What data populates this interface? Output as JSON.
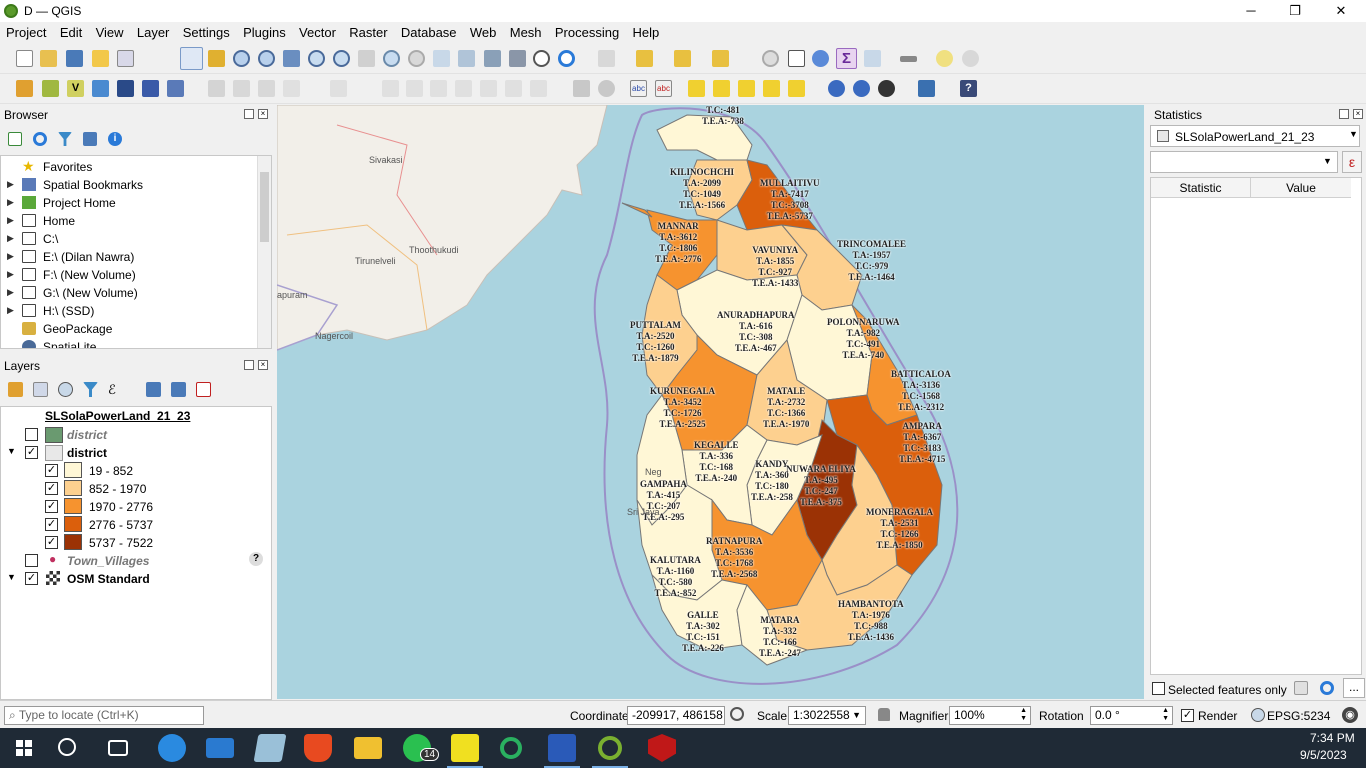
{
  "window": {
    "title": "D — QGIS",
    "minimize": "─",
    "maximize": "❐",
    "close": "✕"
  },
  "menu": [
    "Project",
    "Edit",
    "View",
    "Layer",
    "Settings",
    "Plugins",
    "Vector",
    "Raster",
    "Database",
    "Web",
    "Mesh",
    "Processing",
    "Help"
  ],
  "browser": {
    "title": "Browser",
    "items": [
      {
        "label": "Favorites",
        "icon": "star-icon",
        "expand": ""
      },
      {
        "label": "Spatial Bookmarks",
        "icon": "bookmark-icon",
        "expand": "▶"
      },
      {
        "label": "Project Home",
        "icon": "project-home-icon",
        "expand": "▶"
      },
      {
        "label": "Home",
        "icon": "folder-icon",
        "expand": "▶"
      },
      {
        "label": "C:\\",
        "icon": "folder-icon",
        "expand": "▶"
      },
      {
        "label": "E:\\ (Dilan Nawra)",
        "icon": "folder-icon",
        "expand": "▶"
      },
      {
        "label": "F:\\ (New Volume)",
        "icon": "folder-icon",
        "expand": "▶"
      },
      {
        "label": "G:\\ (New Volume)",
        "icon": "folder-icon",
        "expand": "▶"
      },
      {
        "label": "H:\\ (SSD)",
        "icon": "folder-icon",
        "expand": "▶"
      },
      {
        "label": "GeoPackage",
        "icon": "geopackage-icon",
        "expand": ""
      },
      {
        "label": "SpatiaLite",
        "icon": "spatialite-icon",
        "expand": ""
      }
    ]
  },
  "layers": {
    "title": "Layers",
    "group": "SLSolaPowerLand_21_23",
    "district_hidden": "district",
    "district": "district",
    "classes": [
      {
        "label": "19 - 852",
        "color": "#fff7d6"
      },
      {
        "label": "852 - 1970",
        "color": "#fdd08f"
      },
      {
        "label": "1970 - 2776",
        "color": "#f6932f"
      },
      {
        "label": "2776 - 5737",
        "color": "#db5f0c"
      },
      {
        "label": "5737 - 7522",
        "color": "#9b3205"
      }
    ],
    "town_villages": "Town_Villages",
    "osm": "OSM Standard",
    "help_mark": "?"
  },
  "map": {
    "osm_labels": [
      "Sivakasi",
      "Tirunelveli",
      "Thoothukudi",
      "Nagercoil",
      "apuram"
    ],
    "districts": [
      {
        "text": "T.C:-481\nT.E.A:-738"
      },
      {
        "text": "KILINOCHCHI\nT.A:-2099\nT.C:-1049\nT.E.A:-1566"
      },
      {
        "text": "MULLAITIVU\nT.A:-7417\nT.C:-3708\nT.E.A:-5737"
      },
      {
        "text": "MANNAR\nT.A:-3612\nT.C:-1806\nT.E.A:-2776"
      },
      {
        "text": "VAVUNIYA\nT.A:-1855\nT.C:-927\nT.E.A:-1433"
      },
      {
        "text": "TRINCOMALEE\nT.A:-1957\nT.C:-979\nT.E.A:-1464"
      },
      {
        "text": "ANURADHAPURA\nT.A:-616\nT.C:-308\nT.E.A:-467"
      },
      {
        "text": "POLONNARUWA\nT.A:-982\nT.C:-491\nT.E.A:-740"
      },
      {
        "text": "PUTTALAM\nT.A:-2520\nT.C:-1260\nT.E.A:-1879"
      },
      {
        "text": "BATTICALOA\nT.A:-3136\nT.C:-1568\nT.E.A:-2312"
      },
      {
        "text": "KURUNEGALA\nT.A:-3452\nT.C:-1726\nT.E.A:-2525"
      },
      {
        "text": "MATALE\nT.A:-2732\nT.C:-1366\nT.E.A:-1970"
      },
      {
        "text": "AMPARA\nT.A:-6367\nT.C:-3183\nT.E.A:-4715"
      },
      {
        "text": "KEGALLE\nT.A:-336\nT.C:-168\nT.E.A:-240"
      },
      {
        "text": "KANDY\nT.A:-360\nT.C:-180\nT.E.A:-258"
      },
      {
        "text": "NUWARA ELIYA\nT.A:-495\nT.C:-247\nT.E.A:-375"
      },
      {
        "text": "GAMPAHA\nT.A:-415\nT.C:-207\nT.E.A:-295"
      },
      {
        "text": "MONERAGALA\nT.A:-2531\nT.C:-1266\nT.E.A:-1850"
      },
      {
        "text": "RATNAPURA\nT.A:-3536\nT.C:-1768\nT.E.A:-2568"
      },
      {
        "text": "KALUTARA\nT.A:-1160\nT.C:-580\nT.E.A:-852"
      },
      {
        "text": "HAMBANTOTA\nT.A:-1976\nT.C:-988\nT.E.A:-1436"
      },
      {
        "text": "GALLE\nT.A:-302\nT.C:-151\nT.E.A:-226"
      },
      {
        "text": "MATARA\nT.A:-332\nT.C:-166\nT.E.A:-247"
      }
    ],
    "extra_labels": [
      "Neg",
      "Sri Jaya"
    ]
  },
  "statistics": {
    "title": "Statistics",
    "layer": "SLSolaPowerLand_21_23",
    "col_statistic": "Statistic",
    "col_value": "Value",
    "selected_only": "Selected features only",
    "expr_btn": "ε",
    "more_btn": "..."
  },
  "statusbar": {
    "locate_placeholder": "Type to locate (Ctrl+K)",
    "coordinate_label": "Coordinate",
    "coordinate": "-209917, 486158",
    "scale_label": "Scale",
    "scale": "1:3022558",
    "magnifier_label": "Magnifier",
    "magnifier": "100%",
    "rotation_label": "Rotation",
    "rotation": "0.0 °",
    "render_label": "Render",
    "crs": "EPSG:5234"
  },
  "taskbar": {
    "time": "7:34 PM",
    "date": "9/5/2023",
    "whatsapp_badge": "14"
  }
}
